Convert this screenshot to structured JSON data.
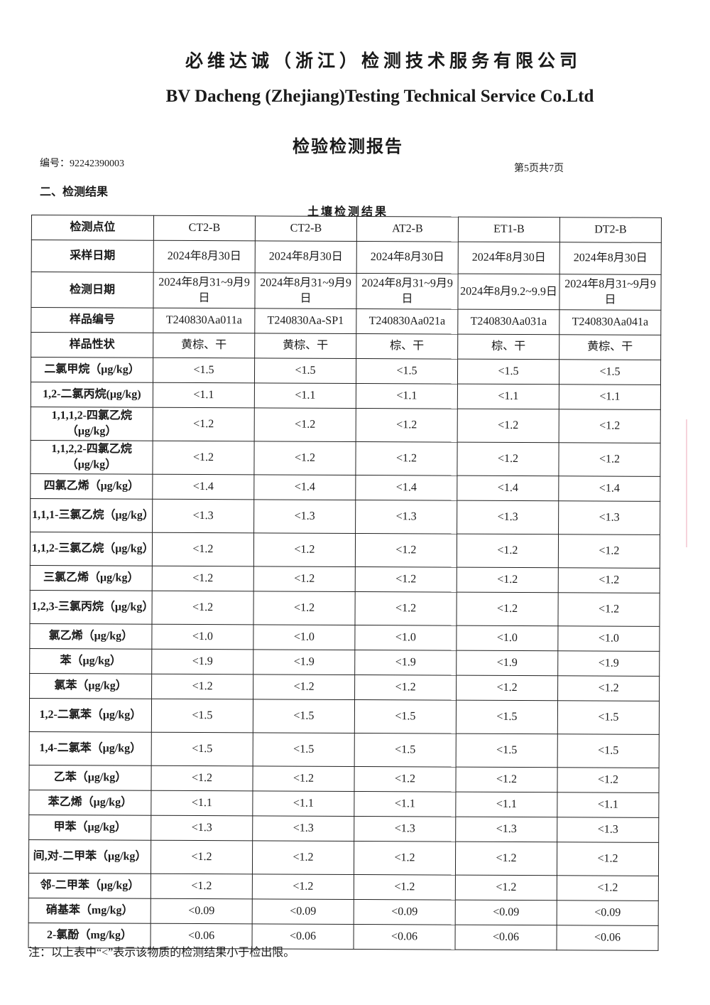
{
  "header": {
    "company_cn": "必维达诚（浙江）检测技术服务有限公司",
    "company_en": "BV Dacheng (Zhejiang)Testing Technical Service Co.Ltd",
    "doc_title": "检验检测报告",
    "report_no": "编号：92242390003",
    "page_no": "第5页共7页"
  },
  "section": "二、检测结果",
  "table": {
    "title": "土壤检测结果",
    "header_rows": [
      {
        "label": "检测点位",
        "values": [
          "CT2-B",
          "CT2-B",
          "AT2-B",
          "ET1-B",
          "DT2-B"
        ]
      },
      {
        "label": "采样日期",
        "values": [
          "2024年8月30日",
          "2024年8月30日",
          "2024年8月30日",
          "2024年8月30日",
          "2024年8月30日"
        ]
      },
      {
        "label": "检测日期",
        "values": [
          "2024年8月31~9月9日",
          "2024年8月31~9月9日",
          "2024年8月31~9月9日",
          "2024年8月9.2~9.9日",
          "2024年8月31~9月9日"
        ]
      },
      {
        "label": "样品编号",
        "values": [
          "T240830Aa011a",
          "T240830Aa-SP1",
          "T240830Aa021a",
          "T240830Aa031a",
          "T240830Aa041a"
        ]
      },
      {
        "label": "样品性状",
        "values": [
          "黄棕、干",
          "黄棕、干",
          "棕、干",
          "棕、干",
          "黄棕、干"
        ]
      }
    ],
    "rows": [
      {
        "label": "二氯甲烷（μg/kg）",
        "values": [
          "<1.5",
          "<1.5",
          "<1.5",
          "<1.5",
          "<1.5"
        ]
      },
      {
        "label": "1,2-二氯丙烷(μg/kg)",
        "values": [
          "<1.1",
          "<1.1",
          "<1.1",
          "<1.1",
          "<1.1"
        ]
      },
      {
        "label": "1,1,1,2-四氯乙烷（μg/kg）",
        "values": [
          "<1.2",
          "<1.2",
          "<1.2",
          "<1.2",
          "<1.2"
        ]
      },
      {
        "label": "1,1,2,2-四氯乙烷（μg/kg）",
        "values": [
          "<1.2",
          "<1.2",
          "<1.2",
          "<1.2",
          "<1.2"
        ]
      },
      {
        "label": "四氯乙烯（μg/kg）",
        "values": [
          "<1.4",
          "<1.4",
          "<1.4",
          "<1.4",
          "<1.4"
        ]
      },
      {
        "label": "1,1,1-三氯乙烷（μg/kg）",
        "values": [
          "<1.3",
          "<1.3",
          "<1.3",
          "<1.3",
          "<1.3"
        ]
      },
      {
        "label": "1,1,2-三氯乙烷（μg/kg）",
        "values": [
          "<1.2",
          "<1.2",
          "<1.2",
          "<1.2",
          "<1.2"
        ]
      },
      {
        "label": "三氯乙烯（μg/kg）",
        "values": [
          "<1.2",
          "<1.2",
          "<1.2",
          "<1.2",
          "<1.2"
        ]
      },
      {
        "label": "1,2,3-三氯丙烷（μg/kg）",
        "values": [
          "<1.2",
          "<1.2",
          "<1.2",
          "<1.2",
          "<1.2"
        ]
      },
      {
        "label": "氯乙烯（μg/kg）",
        "values": [
          "<1.0",
          "<1.0",
          "<1.0",
          "<1.0",
          "<1.0"
        ]
      },
      {
        "label": "苯（μg/kg）",
        "values": [
          "<1.9",
          "<1.9",
          "<1.9",
          "<1.9",
          "<1.9"
        ]
      },
      {
        "label": "氯苯（μg/kg）",
        "values": [
          "<1.2",
          "<1.2",
          "<1.2",
          "<1.2",
          "<1.2"
        ]
      },
      {
        "label": "1,2-二氯苯（μg/kg）",
        "values": [
          "<1.5",
          "<1.5",
          "<1.5",
          "<1.5",
          "<1.5"
        ]
      },
      {
        "label": "1,4-二氯苯（μg/kg）",
        "values": [
          "<1.5",
          "<1.5",
          "<1.5",
          "<1.5",
          "<1.5"
        ]
      },
      {
        "label": "乙苯（μg/kg）",
        "values": [
          "<1.2",
          "<1.2",
          "<1.2",
          "<1.2",
          "<1.2"
        ]
      },
      {
        "label": "苯乙烯（μg/kg）",
        "values": [
          "<1.1",
          "<1.1",
          "<1.1",
          "<1.1",
          "<1.1"
        ]
      },
      {
        "label": "甲苯（μg/kg）",
        "values": [
          "<1.3",
          "<1.3",
          "<1.3",
          "<1.3",
          "<1.3"
        ]
      },
      {
        "label": "间,对-二甲苯（μg/kg）",
        "values": [
          "<1.2",
          "<1.2",
          "<1.2",
          "<1.2",
          "<1.2"
        ]
      },
      {
        "label": "邻-二甲苯（μg/kg）",
        "values": [
          "<1.2",
          "<1.2",
          "<1.2",
          "<1.2",
          "<1.2"
        ]
      },
      {
        "label": "硝基苯（mg/kg）",
        "values": [
          "<0.09",
          "<0.09",
          "<0.09",
          "<0.09",
          "<0.09"
        ]
      },
      {
        "label": "2-氯酚（mg/kg）",
        "values": [
          "<0.06",
          "<0.06",
          "<0.06",
          "<0.06",
          "<0.06"
        ]
      }
    ]
  },
  "note": "注：以上表中“<”表示该物质的检测结果小于检出限。"
}
